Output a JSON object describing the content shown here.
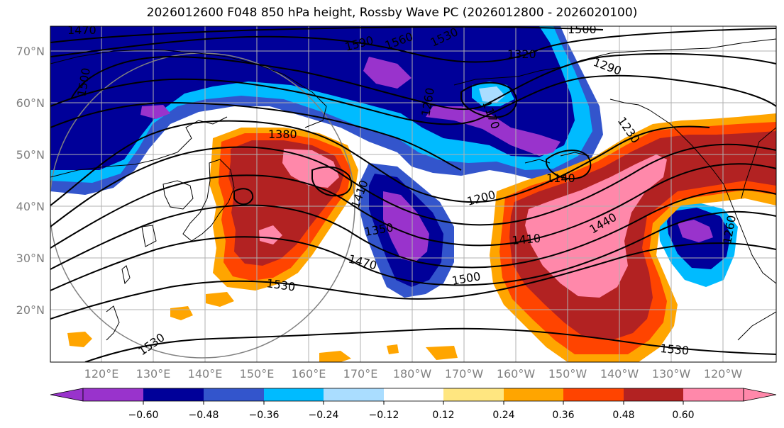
{
  "title": "2026012600 F048 850 hPa height, Rossby Wave PC (2026012800 - 2026020100)",
  "colors": {
    "levels": [
      "#9933cc",
      "#000099",
      "#3355cc",
      "#00bbff",
      "#aaddff",
      "#ffffff",
      "#ffe680",
      "#ffa500",
      "#ff4400",
      "#b22222",
      "#ff88aa"
    ],
    "contour": "#000000",
    "coast": "#000000",
    "grid": "#b0b0b0",
    "circle": "#808080"
  },
  "lat_ticks": [
    "70°N",
    "60°N",
    "50°N",
    "40°N",
    "30°N",
    "20°N"
  ],
  "lon_ticks": [
    "120°E",
    "130°E",
    "140°E",
    "150°E",
    "160°E",
    "170°E",
    "180°W",
    "170°W",
    "160°W",
    "150°W",
    "140°W",
    "130°W",
    "120°W"
  ],
  "contour_labels": [
    "1470",
    "1590",
    "1560",
    "1530",
    "1500",
    "1320",
    "1290",
    "1260",
    "1170",
    "1230",
    "1500",
    "1380",
    "1410",
    "1350",
    "1140",
    "1200",
    "1440",
    "1410",
    "1470",
    "1500",
    "1530",
    "1530",
    "1530",
    "1260"
  ],
  "colorbar": {
    "ticks": [
      "−0.60",
      "−0.48",
      "−0.36",
      "−0.24",
      "−0.12",
      "0.12",
      "0.24",
      "0.36",
      "0.48",
      "0.60"
    ]
  }
}
